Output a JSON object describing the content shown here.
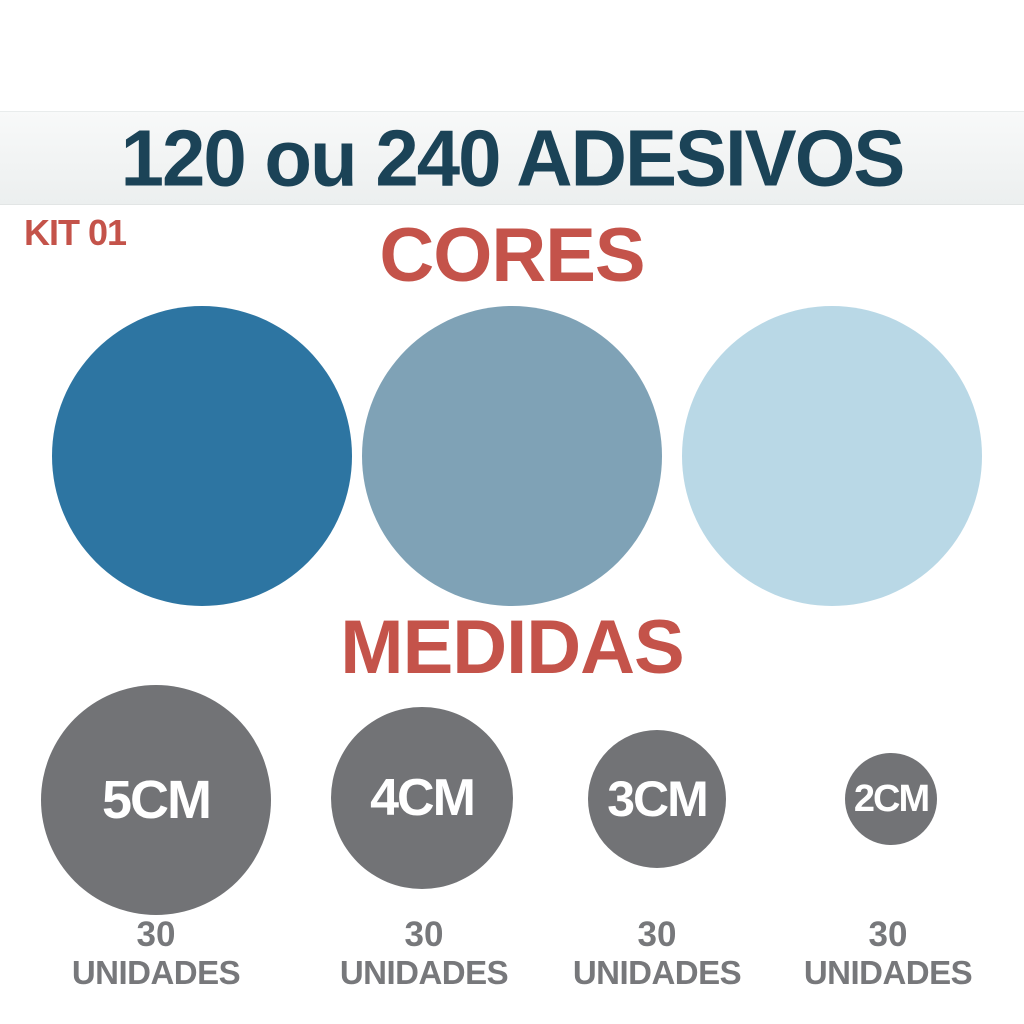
{
  "header": {
    "title": "120 ou 240 ADESIVOS"
  },
  "kit_badge": {
    "label": "KIT 01"
  },
  "colors_section": {
    "heading": "CORES",
    "swatches": [
      {
        "name": "blue-dark",
        "color": "#2d75a2"
      },
      {
        "name": "blue-gray",
        "color": "#7fa2b6"
      },
      {
        "name": "blue-light",
        "color": "#b9d8e6"
      }
    ]
  },
  "sizes_section": {
    "heading": "MEDIDAS",
    "circle_color": "#727376",
    "items": [
      {
        "size": "5CM",
        "units_value": "30",
        "units_word": "UNIDADES"
      },
      {
        "size": "4CM",
        "units_value": "30",
        "units_word": "UNIDADES"
      },
      {
        "size": "3CM",
        "units_value": "30",
        "units_word": "UNIDADES"
      },
      {
        "size": "2CM",
        "units_value": "30",
        "units_word": "UNIDADES"
      }
    ]
  },
  "palette": {
    "accent_red": "#c4534a",
    "title_navy": "#1b4357",
    "band_gray": "#f1f3f3",
    "units_text_gray": "#77787b"
  }
}
